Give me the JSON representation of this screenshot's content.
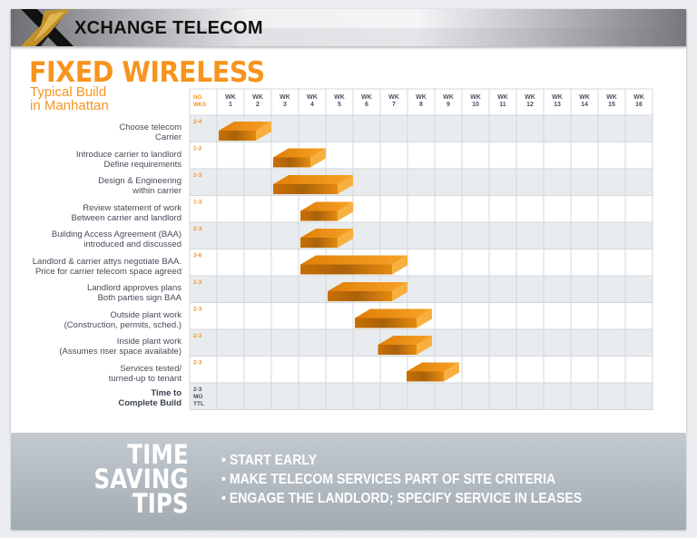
{
  "header": {
    "brand": "XCHANGE TELECOM"
  },
  "title": "FIXED WIRELESS",
  "subtitle": [
    "Typical Build",
    "in Manhattan"
  ],
  "colors": {
    "accent": "#f7941d",
    "bar_front": "#d8800a",
    "bar_top": "#f29a1a",
    "bar_side": "#f7b040",
    "row_shade": "#e9ecef",
    "grid": "#d3d7db"
  },
  "chart_data": {
    "type": "gantt",
    "title": "FIXED WIRELESS",
    "duration_header": [
      "NO.",
      "WKS"
    ],
    "week_headers": [
      "WK 1",
      "WK 2",
      "WK 3",
      "WK 4",
      "WK 5",
      "WK 6",
      "WK 7",
      "WK 8",
      "WK 9",
      "WK 10",
      "WK 11",
      "WK 12",
      "WK 13",
      "WK 14",
      "WK 15",
      "WK 16"
    ],
    "tasks": [
      {
        "label": [
          "Choose telecom",
          "Carrier"
        ],
        "weeks": "2-4",
        "start": 0,
        "end": 2
      },
      {
        "label": [
          "Introduce carrier to landlord",
          "Define requirements"
        ],
        "weeks": "1-2",
        "start": 2,
        "end": 4
      },
      {
        "label": [
          "Design & Engineering",
          "within carrier"
        ],
        "weeks": "1-3",
        "start": 2,
        "end": 5
      },
      {
        "label": [
          "Review statement of work",
          "Between carrier and landlord"
        ],
        "weeks": "1-3",
        "start": 3,
        "end": 5
      },
      {
        "label": [
          "Building Access Agreement (BAA)",
          "introduced and discussed"
        ],
        "weeks": "2-3",
        "start": 3,
        "end": 5
      },
      {
        "label": [
          "Landlord & carrier attys negotiate BAA.",
          "Price for carrier telecom space agreed"
        ],
        "weeks": "3-6",
        "start": 3,
        "end": 7
      },
      {
        "label": [
          "Landlord approves plans",
          "Both parties sign BAA"
        ],
        "weeks": "1-3",
        "start": 4,
        "end": 7
      },
      {
        "label": [
          "Outside plant work",
          "(Construction, permits, sched.)"
        ],
        "weeks": "2-3",
        "start": 5,
        "end": 7.9
      },
      {
        "label": [
          "Inside plant work",
          "(Assumes riser space available)"
        ],
        "weeks": "2-3",
        "start": 5.85,
        "end": 7.9
      },
      {
        "label": [
          "Services tested/",
          "turned-up to tenant"
        ],
        "weeks": "2-3",
        "start": 6.9,
        "end": 8.9
      }
    ],
    "total": {
      "label": [
        "Time to",
        "Complete Build"
      ],
      "weeks": [
        "2-3",
        "MO",
        "TTL"
      ]
    }
  },
  "footer": {
    "heading": [
      "TIME",
      "SAVING",
      "TIPS"
    ],
    "tips": [
      "• START EARLY",
      "• MAKE TELECOM SERVICES PART OF SITE CRITERIA",
      "• ENGAGE THE LANDLORD; SPECIFY SERVICE IN LEASES"
    ]
  }
}
